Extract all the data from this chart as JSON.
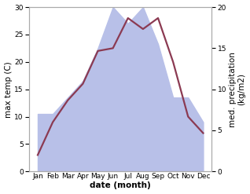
{
  "months": [
    "Jan",
    "Feb",
    "Mar",
    "Apr",
    "May",
    "Jun",
    "Jul",
    "Aug",
    "Sep",
    "Oct",
    "Nov",
    "Dec"
  ],
  "temperature": [
    3,
    9,
    13,
    16,
    22,
    22.5,
    28,
    26,
    28,
    20,
    10,
    7
  ],
  "precipitation": [
    7,
    7,
    9,
    11,
    15,
    20,
    18,
    20,
    15.5,
    9,
    9,
    6
  ],
  "temp_color": "#8B3A52",
  "precip_color": "#b8c0e8",
  "temp_ylim": [
    0,
    30
  ],
  "precip_ylim": [
    0,
    20
  ],
  "temp_yticks": [
    0,
    5,
    10,
    15,
    20,
    25,
    30
  ],
  "precip_yticks": [
    0,
    5,
    10,
    15,
    20
  ],
  "xlabel": "date (month)",
  "ylabel_left": "max temp (C)",
  "ylabel_right": "med. precipitation\n(kg/m2)",
  "background_color": "#ffffff",
  "linewidth": 1.6,
  "fontsize_ticks": 6.5,
  "fontsize_axis_labels": 7.5
}
